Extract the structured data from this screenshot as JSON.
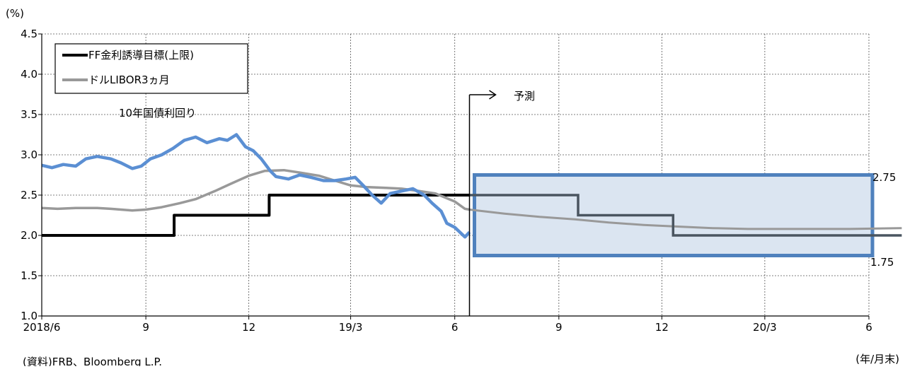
{
  "chart_data": {
    "type": "line",
    "ylabel": "(%)",
    "xlabel": "(年/月末)",
    "source": "(資料)FRB、Bloomberg L.P.",
    "ylim": [
      1.0,
      4.5
    ],
    "y_ticks": [
      "1.0",
      "1.5",
      "2.0",
      "2.5",
      "3.0",
      "3.5",
      "4.0",
      "4.5"
    ],
    "x_range": [
      "2018-06",
      "2020-06"
    ],
    "x_ticks": [
      {
        "date": "2018-06",
        "label": "2018/6"
      },
      {
        "date": "2018-09",
        "label": "9"
      },
      {
        "date": "2018-12",
        "label": "12"
      },
      {
        "date": "2019-03",
        "label": "19/3"
      },
      {
        "date": "2019-06",
        "label": "6"
      },
      {
        "date": "2019-09",
        "label": "9"
      },
      {
        "date": "2019-12",
        "label": "12"
      },
      {
        "date": "2020-03",
        "label": "20/3"
      },
      {
        "date": "2020-06",
        "label": "6"
      }
    ],
    "grid": true,
    "legend_position": "top-left",
    "series": [
      {
        "name": "FF金利誘導目標(上限)",
        "color": "#000000",
        "step": true,
        "points": [
          [
            "2018-06-01",
            2.0
          ],
          [
            "2018-09-26",
            2.0
          ],
          [
            "2018-09-26",
            2.25
          ],
          [
            "2018-12-19",
            2.25
          ],
          [
            "2018-12-19",
            2.5
          ],
          [
            "2019-06-14",
            2.5
          ]
        ]
      },
      {
        "name": "ドルLIBOR3ヵ月",
        "color": "#999999",
        "points": [
          [
            "2018-06-01",
            2.34
          ],
          [
            "2018-06-15",
            2.33
          ],
          [
            "2018-07-01",
            2.34
          ],
          [
            "2018-07-20",
            2.34
          ],
          [
            "2018-08-01",
            2.33
          ],
          [
            "2018-08-20",
            2.31
          ],
          [
            "2018-09-01",
            2.32
          ],
          [
            "2018-09-15",
            2.35
          ],
          [
            "2018-10-01",
            2.4
          ],
          [
            "2018-10-15",
            2.45
          ],
          [
            "2018-11-01",
            2.55
          ],
          [
            "2018-11-15",
            2.64
          ],
          [
            "2018-12-01",
            2.74
          ],
          [
            "2018-12-15",
            2.8
          ],
          [
            "2019-01-01",
            2.81
          ],
          [
            "2019-01-15",
            2.78
          ],
          [
            "2019-02-01",
            2.74
          ],
          [
            "2019-02-15",
            2.68
          ],
          [
            "2019-03-01",
            2.62
          ],
          [
            "2019-03-15",
            2.6
          ],
          [
            "2019-04-01",
            2.59
          ],
          [
            "2019-04-15",
            2.58
          ],
          [
            "2019-05-01",
            2.55
          ],
          [
            "2019-05-15",
            2.52
          ],
          [
            "2019-06-01",
            2.42
          ],
          [
            "2019-06-10",
            2.33
          ],
          [
            "2019-06-14",
            2.32
          ]
        ]
      },
      {
        "name": "10年国債利回り",
        "color": "#5b8fd3",
        "points": [
          [
            "2018-06-01",
            2.87
          ],
          [
            "2018-06-10",
            2.84
          ],
          [
            "2018-06-20",
            2.88
          ],
          [
            "2018-07-01",
            2.86
          ],
          [
            "2018-07-10",
            2.95
          ],
          [
            "2018-07-20",
            2.98
          ],
          [
            "2018-08-01",
            2.95
          ],
          [
            "2018-08-10",
            2.9
          ],
          [
            "2018-08-20",
            2.83
          ],
          [
            "2018-08-28",
            2.86
          ],
          [
            "2018-09-05",
            2.95
          ],
          [
            "2018-09-15",
            3.0
          ],
          [
            "2018-09-25",
            3.08
          ],
          [
            "2018-10-05",
            3.18
          ],
          [
            "2018-10-15",
            3.22
          ],
          [
            "2018-10-25",
            3.15
          ],
          [
            "2018-11-05",
            3.2
          ],
          [
            "2018-11-12",
            3.18
          ],
          [
            "2018-11-20",
            3.25
          ],
          [
            "2018-11-28",
            3.1
          ],
          [
            "2018-12-05",
            3.05
          ],
          [
            "2018-12-12",
            2.95
          ],
          [
            "2018-12-20",
            2.8
          ],
          [
            "2018-12-25",
            2.73
          ],
          [
            "2019-01-05",
            2.7
          ],
          [
            "2019-01-15",
            2.75
          ],
          [
            "2019-01-25",
            2.72
          ],
          [
            "2019-02-05",
            2.68
          ],
          [
            "2019-02-15",
            2.68
          ],
          [
            "2019-02-25",
            2.7
          ],
          [
            "2019-03-05",
            2.72
          ],
          [
            "2019-03-12",
            2.62
          ],
          [
            "2019-03-20",
            2.5
          ],
          [
            "2019-03-28",
            2.4
          ],
          [
            "2019-04-05",
            2.52
          ],
          [
            "2019-04-15",
            2.55
          ],
          [
            "2019-04-25",
            2.58
          ],
          [
            "2019-05-05",
            2.5
          ],
          [
            "2019-05-12",
            2.4
          ],
          [
            "2019-05-20",
            2.3
          ],
          [
            "2019-05-25",
            2.15
          ],
          [
            "2019-06-01",
            2.1
          ],
          [
            "2019-06-07",
            2.02
          ],
          [
            "2019-06-10",
            1.98
          ],
          [
            "2019-06-14",
            2.04
          ]
        ]
      }
    ],
    "forecast": {
      "label": "予測",
      "start": "2019-06-14",
      "band": [
        1.75,
        2.75
      ],
      "band_labels": [
        "2.75",
        "1.75"
      ],
      "band_fill": "#dbe5f1",
      "band_border": "#4f81bd",
      "ff_forecast": {
        "color": "#4a5560",
        "points": [
          [
            "2019-06-14",
            2.5
          ],
          [
            "2019-09-18",
            2.5
          ],
          [
            "2019-09-18",
            2.25
          ],
          [
            "2019-12-11",
            2.25
          ],
          [
            "2019-12-11",
            2.0
          ],
          [
            "2020-06-30",
            2.0
          ]
        ]
      },
      "libor_forecast": {
        "color": "#999999",
        "points": [
          [
            "2019-06-14",
            2.32
          ],
          [
            "2019-07-15",
            2.27
          ],
          [
            "2019-08-15",
            2.23
          ],
          [
            "2019-09-15",
            2.2
          ],
          [
            "2019-10-15",
            2.16
          ],
          [
            "2019-11-15",
            2.13
          ],
          [
            "2019-12-15",
            2.11
          ],
          [
            "2020-01-15",
            2.09
          ],
          [
            "2020-02-15",
            2.08
          ],
          [
            "2020-03-15",
            2.08
          ],
          [
            "2020-04-15",
            2.08
          ],
          [
            "2020-05-15",
            2.08
          ],
          [
            "2020-06-30",
            2.09
          ]
        ]
      }
    }
  }
}
